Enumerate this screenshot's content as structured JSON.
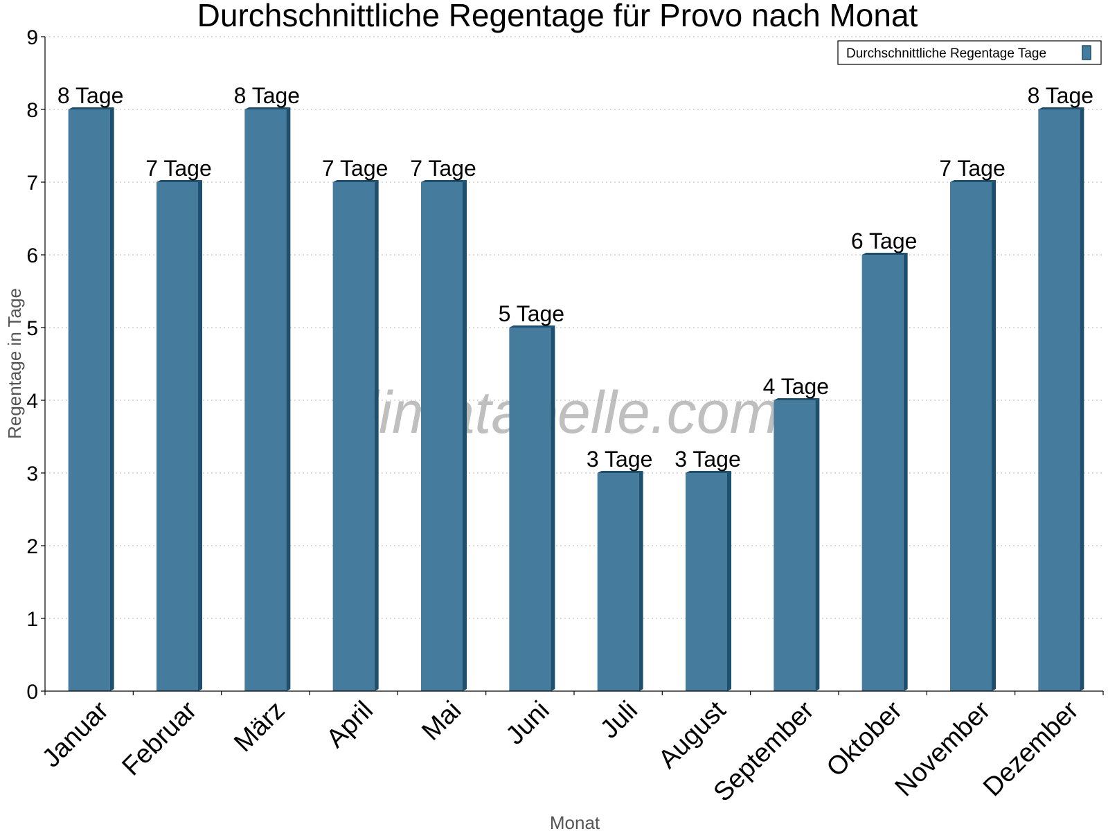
{
  "chart_data": {
    "type": "bar",
    "title": "Durchschnittliche Regentage für Provo nach Monat",
    "xlabel": "Monat",
    "ylabel": "Regentage in Tage",
    "categories": [
      "Januar",
      "Februar",
      "März",
      "April",
      "Mai",
      "Juni",
      "Juli",
      "August",
      "September",
      "Oktober",
      "November",
      "Dezember"
    ],
    "series": [
      {
        "name": "Durchschnittliche Regentage Tage",
        "values": [
          8,
          7,
          8,
          7,
          7,
          5,
          3,
          3,
          4,
          6,
          7,
          8
        ],
        "data_labels": [
          "8 Tage",
          "7 Tage",
          "8 Tage",
          "7 Tage",
          "7 Tage",
          "5 Tage",
          "3 Tage",
          "3 Tage",
          "4 Tage",
          "6 Tage",
          "7 Tage",
          "8 Tage"
        ]
      }
    ],
    "ylim": [
      0,
      9
    ],
    "yticks": [
      0,
      1,
      2,
      3,
      4,
      5,
      6,
      7,
      8,
      9
    ],
    "grid": true,
    "legend_position": "top-right",
    "colors": {
      "bar": "#457b9d",
      "bar_side": "#1d4f6e",
      "grid": "#c8c8c8",
      "axis": "#000000"
    }
  },
  "watermark": "klimatabelle.com"
}
